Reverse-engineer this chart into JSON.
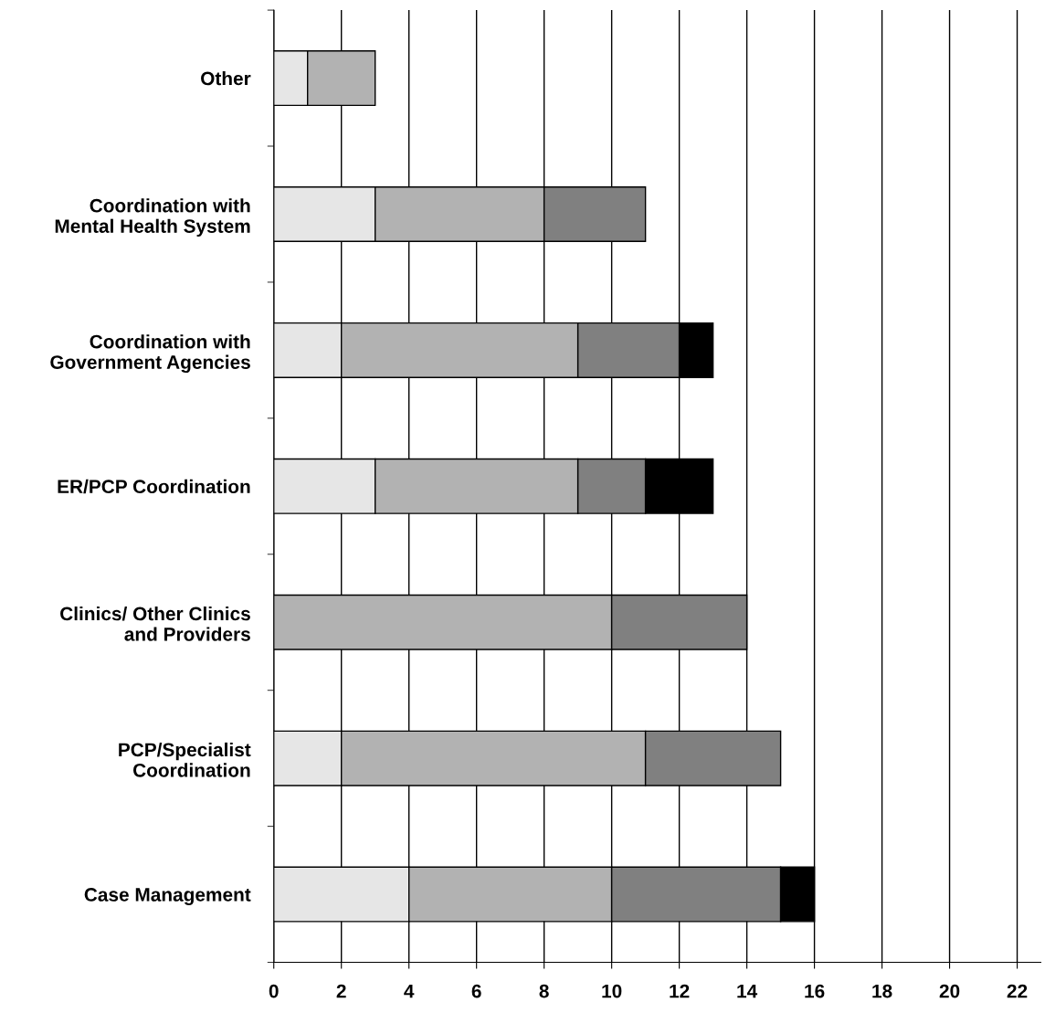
{
  "chart_data": {
    "type": "bar",
    "orientation": "horizontal",
    "stacked": true,
    "grid": "x",
    "categories": [
      "Other",
      "Coordination with\nMental Health System",
      "Coordination with\nGovernment Agencies",
      "ER/PCP Coordination",
      "Clinics/ Other Clinics\nand Providers",
      "PCP/Specialist\nCoordination",
      "Case Management"
    ],
    "series": [
      {
        "color": "#e6e6e6",
        "values": [
          1,
          3,
          2,
          3,
          null,
          2,
          4
        ]
      },
      {
        "color": "#b2b2b2",
        "values": [
          2,
          5,
          7,
          6,
          10,
          9,
          6
        ]
      },
      {
        "color": "#808080",
        "values": [
          null,
          3,
          3,
          2,
          4,
          4,
          5
        ]
      },
      {
        "color": "#000000",
        "values": [
          null,
          null,
          1,
          2,
          null,
          null,
          1
        ]
      }
    ],
    "xlim": [
      0,
      22.7
    ],
    "xticks": [
      0,
      2,
      4,
      6,
      8,
      10,
      12,
      14,
      16,
      18,
      20,
      22
    ]
  }
}
